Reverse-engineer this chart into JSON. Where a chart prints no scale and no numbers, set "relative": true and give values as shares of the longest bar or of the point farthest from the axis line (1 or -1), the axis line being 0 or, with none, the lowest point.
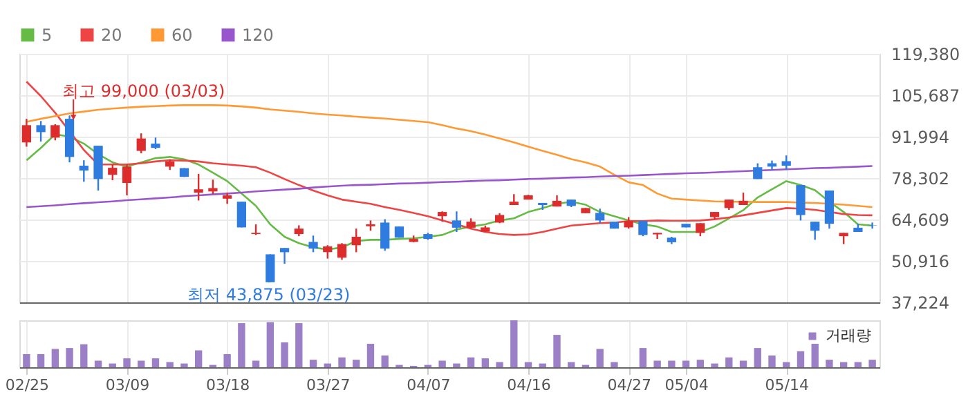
{
  "chart_data": [
    {
      "type": "candlestick",
      "categories": [
        null,
        null,
        null,
        null,
        null,
        null,
        null,
        null,
        null,
        null,
        null,
        null,
        null,
        null,
        null,
        null,
        null,
        null,
        null,
        null,
        null,
        null,
        null,
        null,
        null,
        null,
        null,
        null,
        null,
        null,
        null,
        null,
        null,
        null,
        null,
        null,
        null,
        null,
        null,
        null,
        null,
        null,
        null,
        null,
        null,
        null,
        null,
        null,
        null,
        null,
        null,
        null,
        null,
        null,
        null,
        null,
        null,
        null,
        null,
        null
      ],
      "ohlc": [
        [
          90100,
          97900,
          88700,
          95800
        ],
        [
          95800,
          97200,
          90400,
          93500
        ],
        [
          91700,
          96100,
          90800,
          95800
        ],
        [
          97900,
          99000,
          83500,
          85300
        ],
        [
          82400,
          84200,
          77100,
          80800
        ],
        [
          89000,
          89000,
          74200,
          78000
        ],
        [
          79400,
          82800,
          77600,
          81700
        ],
        [
          76700,
          82800,
          72600,
          82100
        ],
        [
          87300,
          93100,
          86500,
          91400
        ],
        [
          89700,
          91700,
          87900,
          88300
        ],
        [
          82100,
          84500,
          81000,
          83800
        ],
        [
          81600,
          81600,
          78700,
          78700
        ],
        [
          73500,
          79700,
          70900,
          74600
        ],
        [
          73900,
          77800,
          73000,
          75000
        ],
        [
          71500,
          73500,
          69800,
          72600
        ],
        [
          70500,
          70500,
          62000,
          62000
        ],
        [
          59800,
          63000,
          59500,
          60200
        ],
        [
          53100,
          53100,
          43875,
          43875
        ],
        [
          55200,
          55200,
          50000,
          53800
        ],
        [
          59800,
          62700,
          59100,
          61600
        ],
        [
          57200,
          59300,
          53800,
          55000
        ],
        [
          53800,
          56100,
          51700,
          55700
        ],
        [
          52000,
          56800,
          51300,
          56500
        ],
        [
          56100,
          61600,
          53800,
          58900
        ],
        [
          62400,
          64300,
          60900,
          63000
        ],
        [
          63600,
          64700,
          54300,
          55000
        ],
        [
          62300,
          62300,
          58600,
          58600
        ],
        [
          57200,
          59300,
          57100,
          58200
        ],
        [
          59800,
          60200,
          57900,
          58200
        ],
        [
          65700,
          67300,
          63900,
          67100
        ],
        [
          64300,
          67300,
          60500,
          61900
        ],
        [
          61900,
          65000,
          61600,
          63900
        ],
        [
          60600,
          62600,
          60600,
          62000
        ],
        [
          63600,
          66700,
          63400,
          66100
        ],
        [
          69400,
          73000,
          69400,
          70500
        ],
        [
          71200,
          72800,
          71200,
          72600
        ],
        [
          70100,
          70100,
          67800,
          69400
        ],
        [
          68900,
          72600,
          68900,
          70800
        ],
        [
          71200,
          71200,
          68700,
          69100
        ],
        [
          66700,
          68400,
          66700,
          68400
        ],
        [
          66800,
          68200,
          63400,
          64300
        ],
        [
          63900,
          63900,
          61600,
          61600
        ],
        [
          62000,
          65400,
          61600,
          64100
        ],
        [
          64100,
          64100,
          59100,
          59500
        ],
        [
          59700,
          60200,
          58200,
          60200
        ],
        [
          58600,
          58900,
          56500,
          57100
        ],
        [
          63200,
          63200,
          62000,
          62000
        ],
        [
          60200,
          63400,
          59100,
          63400
        ],
        [
          65400,
          67100,
          64700,
          67100
        ],
        [
          68400,
          71200,
          67800,
          71200
        ],
        [
          69400,
          73500,
          69400,
          70800
        ],
        [
          81900,
          83200,
          78000,
          78000
        ],
        [
          83200,
          84100,
          81000,
          82100
        ],
        [
          83900,
          85800,
          81000,
          82400
        ],
        [
          76000,
          76000,
          64300,
          66100
        ],
        [
          63900,
          63900,
          57900,
          60900
        ],
        [
          74200,
          74200,
          61600,
          63200
        ],
        [
          59100,
          60200,
          56500,
          60200
        ],
        [
          61900,
          63200,
          60500,
          60500
        ],
        [
          62700,
          63600,
          61600,
          62600
        ]
      ],
      "colors": [
        "#dd2c2c",
        "#2f7ce0",
        "#dd2c2c",
        "#2f7ce0",
        "#2f7ce0",
        "#2f7ce0",
        "#dd2c2c",
        "#dd2c2c",
        "#dd2c2c",
        "#2f7ce0",
        "#dd2c2c",
        "#2f7ce0",
        "#dd2c2c",
        "#dd2c2c",
        "#dd2c2c",
        "#2f7ce0",
        "#dd2c2c",
        "#2f7ce0",
        "#2f7ce0",
        "#dd2c2c",
        "#2f7ce0",
        "#dd2c2c",
        "#dd2c2c",
        "#dd2c2c",
        "#dd2c2c",
        "#2f7ce0",
        "#2f7ce0",
        "#dd2c2c",
        "#2f7ce0",
        "#dd2c2c",
        "#2f7ce0",
        "#dd2c2c",
        "#dd2c2c",
        "#dd2c2c",
        "#dd2c2c",
        "#dd2c2c",
        "#2f7ce0",
        "#dd2c2c",
        "#2f7ce0",
        "#dd2c2c",
        "#2f7ce0",
        "#2f7ce0",
        "#dd2c2c",
        "#2f7ce0",
        "#dd2c2c",
        "#2f7ce0",
        "#2f7ce0",
        "#dd2c2c",
        "#dd2c2c",
        "#dd2c2c",
        "#dd2c2c",
        "#2f7ce0",
        "#2f7ce0",
        "#2f7ce0",
        "#2f7ce0",
        "#2f7ce0",
        "#2f7ce0",
        "#dd2c2c",
        "#2f7ce0",
        "#2f7ce0"
      ],
      "series": [
        {
          "name": "5",
          "type": "line",
          "color": "#66bb44",
          "values": [
            84200,
            88300,
            92800,
            92000,
            89700,
            86200,
            83500,
            82100,
            83500,
            84900,
            85300,
            84500,
            82800,
            80100,
            77300,
            73200,
            69100,
            63000,
            58900,
            56800,
            55400,
            54700,
            55400,
            57500,
            57900,
            57900,
            58200,
            58400,
            58900,
            59500,
            61300,
            62300,
            63000,
            64300,
            65000,
            67100,
            68400,
            69800,
            70500,
            69500,
            67100,
            65700,
            64300,
            63000,
            62300,
            60500,
            60500,
            60500,
            62300,
            65000,
            67700,
            71900,
            74600,
            77300,
            76000,
            74300,
            70500,
            67100,
            63000,
            62600
          ]
        },
        {
          "name": "20",
          "type": "line",
          "color": "#ee4444",
          "values": [
            110200,
            105400,
            99900,
            93800,
            87600,
            82800,
            82800,
            82800,
            83200,
            83800,
            84200,
            84100,
            83800,
            83200,
            82800,
            82400,
            81900,
            80100,
            78000,
            76000,
            74200,
            72600,
            71200,
            70500,
            69800,
            68700,
            67800,
            66800,
            65700,
            64300,
            63000,
            61600,
            60500,
            59800,
            59500,
            59700,
            60500,
            61600,
            62600,
            63000,
            63400,
            63600,
            64100,
            64100,
            64300,
            64200,
            64200,
            64300,
            64700,
            65300,
            66000,
            66800,
            67600,
            68400,
            68200,
            67800,
            67100,
            66400,
            66100,
            66000
          ]
        },
        {
          "name": "60",
          "type": "line",
          "color": "#ff9933",
          "values": [
            96900,
            97900,
            98800,
            99700,
            100300,
            100900,
            101300,
            101600,
            101900,
            102100,
            102300,
            102400,
            102400,
            102400,
            102300,
            102000,
            101600,
            101000,
            100600,
            100200,
            99700,
            99300,
            99000,
            98600,
            98300,
            98000,
            97600,
            97200,
            96800,
            95800,
            94700,
            93800,
            92700,
            91400,
            90100,
            88700,
            87300,
            86000,
            84600,
            83500,
            82100,
            79400,
            76900,
            76000,
            73200,
            71500,
            71200,
            70900,
            70600,
            70500,
            70500,
            70400,
            70400,
            70400,
            70200,
            70100,
            69800,
            69500,
            69100,
            68700
          ]
        },
        {
          "name": "120",
          "type": "line",
          "color": "#9955cc",
          "values": [
            68700,
            69000,
            69300,
            69700,
            70000,
            70300,
            70600,
            71000,
            71300,
            71600,
            71900,
            72300,
            72600,
            72900,
            73200,
            73500,
            73900,
            74200,
            74500,
            74800,
            75200,
            75500,
            75800,
            76000,
            76100,
            76300,
            76500,
            76600,
            76800,
            77000,
            77100,
            77300,
            77500,
            77600,
            77800,
            78000,
            78100,
            78300,
            78500,
            78600,
            78800,
            79000,
            79100,
            79300,
            79500,
            79700,
            79900,
            80000,
            80200,
            80400,
            80600,
            80800,
            81000,
            81200,
            81400,
            81600,
            81700,
            81900,
            82100,
            82300
          ]
        }
      ],
      "ylim": [
        37224,
        119380
      ],
      "yticks": [
        {
          "value": 37224,
          "label": "37,224"
        },
        {
          "value": 50916,
          "label": "50,916"
        },
        {
          "value": 64609,
          "label": "64,609"
        },
        {
          "value": 78302,
          "label": "78,302"
        },
        {
          "value": 91994,
          "label": "91,994"
        },
        {
          "value": 105687,
          "label": "105,687"
        },
        {
          "value": 119380,
          "label": "119,380"
        }
      ],
      "grid": true,
      "legend": "top left",
      "marker": "none",
      "line_style": "solid",
      "tick_labels": "y",
      "annotations": [
        "최고 99,000 (03/03)",
        "최저 43,875 (03/23)"
      ]
    },
    {
      "type": "bar",
      "relative": true,
      "categories": [
        "02/25",
        null,
        null,
        null,
        null,
        null,
        null,
        "03/09",
        null,
        null,
        null,
        null,
        null,
        null,
        "03/18",
        null,
        null,
        null,
        null,
        null,
        null,
        "03/27",
        null,
        null,
        null,
        null,
        null,
        null,
        "04/07",
        null,
        null,
        null,
        null,
        null,
        null,
        "04/16",
        null,
        null,
        null,
        null,
        null,
        null,
        "04/27",
        null,
        null,
        null,
        "05/04",
        null,
        null,
        null,
        null,
        null,
        null,
        "05/14",
        null,
        null,
        null,
        null,
        null,
        null
      ],
      "series": [
        {
          "name": "거래량",
          "color": "#9b80c8",
          "values": [
            0.28,
            0.28,
            0.39,
            0.41,
            0.49,
            0.14,
            0.08,
            0.19,
            0.14,
            0.19,
            0.11,
            0.08,
            0.36,
            0.05,
            0.28,
            0.94,
            0.14,
            0.96,
            0.53,
            0.94,
            0.16,
            0.08,
            0.21,
            0.16,
            0.5,
            0.25,
            0.05,
            0.03,
            0.05,
            0.14,
            0.08,
            0.21,
            0.19,
            0.11,
            1,
            0.11,
            0.08,
            0.69,
            0.11,
            0.05,
            0.39,
            0.11,
            null,
            0.41,
            0.14,
            0.14,
            0.14,
            0.16,
            0.08,
            0.21,
            0.14,
            0.41,
            0.25,
            0.11,
            0.34,
            0.5,
            0.16,
            0.11,
            0.11,
            0.16
          ]
        }
      ],
      "grid": "x",
      "legend": "top right",
      "tick_labels": "x"
    }
  ]
}
